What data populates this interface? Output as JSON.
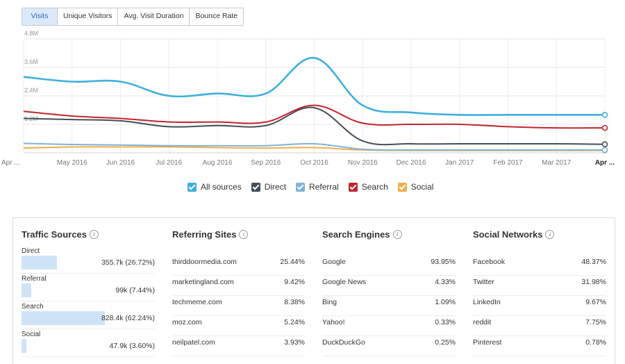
{
  "tabs": [
    "Visits",
    "Unique Visitors",
    "Avg. Visit Duration",
    "Bounce Rate"
  ],
  "active_tab": 0,
  "chart_data": {
    "type": "line",
    "x": [
      "Apr ...",
      "May 2016",
      "Jun 2016",
      "Jul 2016",
      "Aug 2016",
      "Sep 2016",
      "Oct 2016",
      "Nov 2016",
      "Dec 2016",
      "Jan 2017",
      "Feb 2017",
      "Mar 2017",
      "Apr ..."
    ],
    "y_ticks": [
      "4.8M",
      "3.6M",
      "2.4M",
      "1.2M"
    ],
    "ylim": [
      0,
      4.8
    ],
    "grid": true,
    "series": [
      {
        "name": "All sources",
        "color": "#3daee0",
        "values": [
          3.2,
          3.0,
          3.0,
          2.4,
          2.5,
          2.5,
          4.0,
          2.0,
          1.7,
          1.6,
          1.6,
          1.6,
          1.6
        ]
      },
      {
        "name": "Direct",
        "color": "#434e57",
        "values": [
          1.45,
          1.4,
          1.35,
          1.1,
          1.15,
          1.15,
          1.9,
          0.5,
          0.38,
          0.38,
          0.38,
          0.38,
          0.36
        ]
      },
      {
        "name": "Referral",
        "color": "#7fb3d6",
        "values": [
          0.4,
          0.35,
          0.33,
          0.3,
          0.3,
          0.3,
          0.38,
          0.15,
          0.12,
          0.12,
          0.12,
          0.12,
          0.12
        ]
      },
      {
        "name": "Search",
        "color": "#c2242c",
        "values": [
          1.75,
          1.55,
          1.45,
          1.3,
          1.3,
          1.3,
          2.0,
          1.25,
          1.2,
          1.2,
          1.1,
          1.05,
          1.05
        ]
      },
      {
        "name": "Social",
        "color": "#f0ad4e",
        "values": [
          0.2,
          0.25,
          0.25,
          0.25,
          0.22,
          0.2,
          0.22,
          0.12,
          0.1,
          0.1,
          0.1,
          0.1,
          0.1
        ]
      }
    ]
  },
  "legend": [
    {
      "label": "All sources",
      "color": "#3daee0"
    },
    {
      "label": "Direct",
      "color": "#434e57"
    },
    {
      "label": "Referral",
      "color": "#7fb3d6"
    },
    {
      "label": "Search",
      "color": "#c2242c"
    },
    {
      "label": "Social",
      "color": "#f0ad4e"
    }
  ],
  "traffic_sources": {
    "title": "Traffic Sources",
    "items": [
      {
        "label": "Direct",
        "value": "355.7k (26.72%)",
        "pct": 26.72
      },
      {
        "label": "Referral",
        "value": "99k (7.44%)",
        "pct": 7.44
      },
      {
        "label": "Search",
        "value": "828.4k (62.24%)",
        "pct": 62.24
      },
      {
        "label": "Social",
        "value": "47.9k (3.60%)",
        "pct": 3.6
      }
    ]
  },
  "referring_sites": {
    "title": "Referring Sites",
    "rows": [
      {
        "name": "thirddoormedia.com",
        "value": "25.44%"
      },
      {
        "name": "marketingland.com",
        "value": "9.42%"
      },
      {
        "name": "techmeme.com",
        "value": "8.38%"
      },
      {
        "name": "moz.com",
        "value": "5.24%"
      },
      {
        "name": "neilpatel.com",
        "value": "3.93%"
      }
    ]
  },
  "search_engines": {
    "title": "Search Engines",
    "rows": [
      {
        "name": "Google",
        "value": "93.95%"
      },
      {
        "name": "Google News",
        "value": "4.33%"
      },
      {
        "name": "Bing",
        "value": "1.09%"
      },
      {
        "name": "Yahoo!",
        "value": "0.33%"
      },
      {
        "name": "DuckDuckGo",
        "value": "0.25%"
      }
    ]
  },
  "social_networks": {
    "title": "Social Networks",
    "rows": [
      {
        "name": "Facebook",
        "value": "48.37%"
      },
      {
        "name": "Twitter",
        "value": "31.98%"
      },
      {
        "name": "LinkedIn",
        "value": "9.67%"
      },
      {
        "name": "reddit",
        "value": "7.75%"
      },
      {
        "name": "Pinterest",
        "value": "0.78%"
      }
    ]
  },
  "info_icon": "info-icon"
}
